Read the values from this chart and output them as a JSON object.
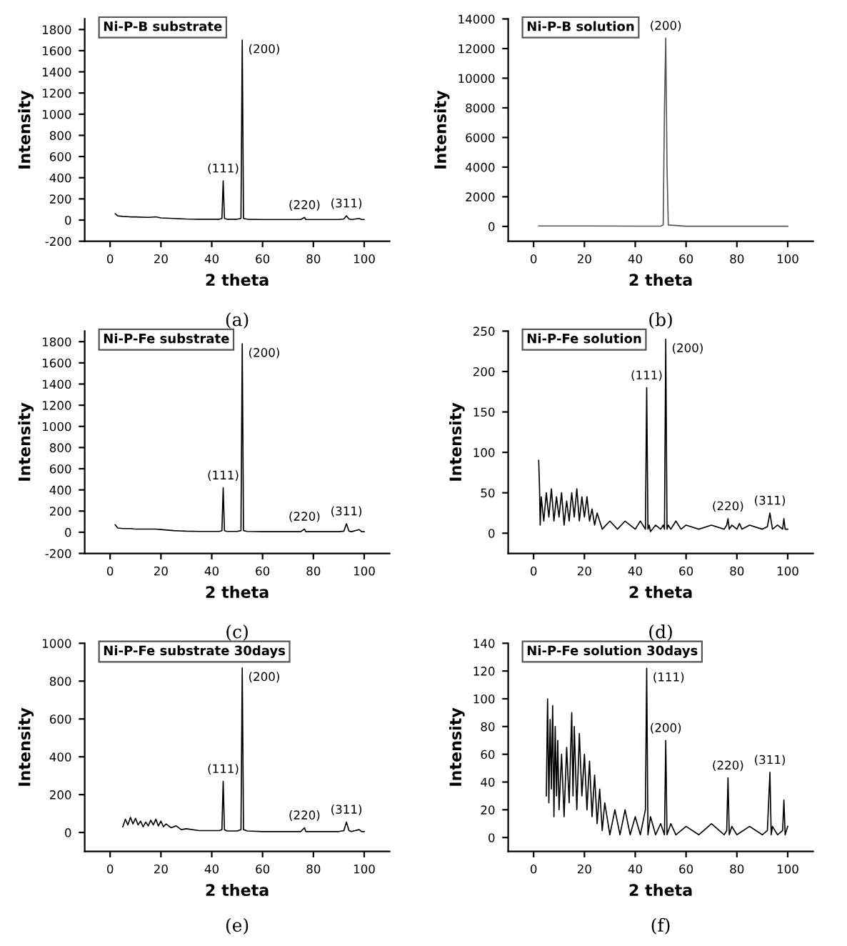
{
  "chart_data": [
    {
      "type": "line",
      "title": "Ni-P-B substrate",
      "xlabel": "2 theta",
      "ylabel": "Intensity",
      "color": "#000000",
      "x": [
        2,
        3,
        5,
        8,
        10,
        15,
        18,
        20,
        25,
        30,
        35,
        40,
        43,
        44,
        44.5,
        45,
        46,
        50,
        51.5,
        52,
        52.5,
        54,
        60,
        70,
        75,
        76.5,
        77,
        78,
        85,
        90,
        92,
        93,
        94,
        95,
        98,
        99,
        100
      ],
      "values": [
        60,
        40,
        35,
        30,
        30,
        25,
        30,
        20,
        15,
        10,
        8,
        8,
        8,
        15,
        370,
        15,
        8,
        8,
        15,
        1700,
        15,
        8,
        5,
        5,
        5,
        25,
        5,
        5,
        5,
        5,
        10,
        40,
        10,
        5,
        15,
        5,
        5
      ],
      "xlim": [
        -10,
        110
      ],
      "xticks": [
        0,
        20,
        40,
        60,
        80,
        100
      ],
      "ylim": [
        -200,
        1900
      ],
      "yticks": [
        -200,
        0,
        200,
        400,
        600,
        800,
        1000,
        1200,
        1400,
        1600,
        1800
      ],
      "annotations": [
        {
          "text": "(111)",
          "x": 44.5,
          "y": 370
        },
        {
          "text": "(200)",
          "x": 52,
          "y": 1700
        },
        {
          "text": "(220)",
          "x": 76.5,
          "y": 25
        },
        {
          "text": "(311)",
          "x": 93,
          "y": 40
        },
        "(a)"
      ]
    },
    {
      "type": "line",
      "title": "Ni-P-B solution",
      "xlabel": "2 theta",
      "ylabel": "Intensity",
      "color": "#555555",
      "x": [
        2,
        20,
        40,
        50,
        51,
        51.5,
        52,
        52.5,
        53,
        60,
        80,
        100
      ],
      "values": [
        30,
        30,
        20,
        20,
        100,
        8000,
        12700,
        4000,
        100,
        10,
        10,
        10
      ],
      "xlim": [
        -10,
        110
      ],
      "xticks": [
        0,
        20,
        40,
        60,
        80,
        100
      ],
      "ylim": [
        -1000,
        14000
      ],
      "yticks": [
        0,
        2000,
        4000,
        6000,
        8000,
        10000,
        12000,
        14000
      ],
      "annotations": [
        {
          "text": "(200)",
          "x": 52,
          "y": 12700
        },
        "(b)"
      ]
    },
    {
      "type": "line",
      "title": "Ni-P-Fe substrate",
      "xlabel": "2 theta",
      "ylabel": "Intensity",
      "color": "#000000",
      "x": [
        2,
        3,
        5,
        8,
        10,
        15,
        18,
        20,
        25,
        30,
        35,
        40,
        43,
        44,
        44.5,
        45,
        46,
        50,
        51.5,
        52,
        52.5,
        54,
        60,
        70,
        75,
        76.5,
        77,
        78,
        85,
        90,
        92,
        93,
        94,
        95,
        98,
        99,
        100
      ],
      "values": [
        70,
        40,
        35,
        35,
        30,
        30,
        30,
        25,
        15,
        10,
        8,
        8,
        8,
        15,
        420,
        15,
        8,
        8,
        15,
        1780,
        15,
        8,
        5,
        5,
        5,
        30,
        5,
        5,
        5,
        5,
        10,
        80,
        10,
        5,
        25,
        5,
        5
      ],
      "xlim": [
        -10,
        110
      ],
      "xticks": [
        0,
        20,
        40,
        60,
        80,
        100
      ],
      "ylim": [
        -200,
        1900
      ],
      "yticks": [
        -200,
        0,
        200,
        400,
        600,
        800,
        1000,
        1200,
        1400,
        1600,
        1800
      ],
      "annotations": [
        {
          "text": "(111)",
          "x": 44.5,
          "y": 420
        },
        {
          "text": "(200)",
          "x": 52,
          "y": 1780
        },
        {
          "text": "(220)",
          "x": 76.5,
          "y": 30
        },
        {
          "text": "(311)",
          "x": 93,
          "y": 80
        },
        "(c)"
      ]
    },
    {
      "type": "line",
      "title": "Ni-P-Fe solution",
      "xlabel": "2 theta",
      "ylabel": "Intensity",
      "color": "#000000",
      "x": [
        2,
        2.3,
        2.6,
        3,
        4,
        5,
        6,
        7,
        8,
        9,
        10,
        11,
        12,
        13,
        14,
        15,
        16,
        17,
        18,
        19,
        20,
        21,
        22,
        23,
        24,
        25,
        27,
        30,
        33,
        36,
        40,
        42,
        44,
        44.5,
        45,
        45.5,
        46,
        48,
        50,
        51,
        51.5,
        52,
        52.5,
        53,
        54,
        56,
        58,
        60,
        65,
        70,
        75,
        76,
        76.5,
        77,
        78,
        80,
        81,
        82,
        85,
        90,
        92,
        93,
        93.5,
        94,
        96,
        98,
        98.5,
        99,
        100
      ],
      "values": [
        90,
        60,
        10,
        45,
        15,
        50,
        20,
        55,
        15,
        45,
        20,
        50,
        10,
        40,
        15,
        50,
        20,
        55,
        15,
        45,
        20,
        45,
        15,
        30,
        10,
        25,
        5,
        15,
        5,
        15,
        5,
        15,
        5,
        180,
        5,
        10,
        2,
        10,
        5,
        10,
        5,
        240,
        5,
        10,
        5,
        15,
        5,
        10,
        5,
        10,
        5,
        10,
        18,
        5,
        10,
        5,
        12,
        5,
        10,
        5,
        8,
        25,
        15,
        5,
        10,
        5,
        18,
        5,
        5
      ],
      "xlim": [
        -10,
        110
      ],
      "xticks": [
        0,
        20,
        40,
        60,
        80,
        100
      ],
      "ylim": [
        -25,
        250
      ],
      "yticks": [
        0,
        50,
        100,
        150,
        200,
        250
      ],
      "annotations": [
        {
          "text": "(111)",
          "x": 44.5,
          "y": 180
        },
        {
          "text": "(200)",
          "x": 52,
          "y": 240
        },
        {
          "text": "(220)",
          "x": 76.5,
          "y": 18
        },
        {
          "text": "(311)",
          "x": 93,
          "y": 25
        },
        "(d)"
      ]
    },
    {
      "type": "line",
      "title": "Ni-P-Fe substrate 30days",
      "xlabel": "2 theta",
      "ylabel": "Intensity",
      "color": "#000000",
      "x": [
        5,
        6,
        7,
        8,
        9,
        10,
        11,
        12,
        13,
        14,
        15,
        16,
        17,
        18,
        19,
        20,
        21,
        22,
        24,
        26,
        28,
        30,
        35,
        40,
        43,
        44,
        44.5,
        45,
        46,
        50,
        51.5,
        52,
        52.5,
        54,
        60,
        70,
        75,
        76.5,
        77,
        78,
        85,
        90,
        92,
        93,
        94,
        95,
        98,
        99,
        100
      ],
      "values": [
        30,
        70,
        40,
        80,
        45,
        75,
        40,
        60,
        30,
        55,
        35,
        65,
        40,
        70,
        35,
        60,
        30,
        45,
        25,
        35,
        15,
        20,
        10,
        10,
        10,
        15,
        270,
        15,
        8,
        8,
        15,
        870,
        15,
        8,
        5,
        5,
        5,
        25,
        5,
        5,
        5,
        5,
        10,
        55,
        10,
        5,
        15,
        5,
        5
      ],
      "xlim": [
        -10,
        110
      ],
      "xticks": [
        0,
        20,
        40,
        60,
        80,
        100
      ],
      "ylim": [
        -100,
        1000
      ],
      "yticks": [
        0,
        200,
        400,
        600,
        800,
        1000
      ],
      "annotations": [
        {
          "text": "(111)",
          "x": 44.5,
          "y": 270
        },
        {
          "text": "(200)",
          "x": 52,
          "y": 870
        },
        {
          "text": "(220)",
          "x": 76.5,
          "y": 25
        },
        {
          "text": "(311)",
          "x": 93,
          "y": 55
        },
        "(e)"
      ]
    },
    {
      "type": "line",
      "title": "Ni-P-Fe solution 30days",
      "xlabel": "2 theta",
      "ylabel": "Intensity",
      "color": "#000000",
      "x": [
        5,
        5.5,
        6,
        6.5,
        7,
        7.5,
        8,
        8.5,
        9,
        9.5,
        10,
        11,
        12,
        13,
        14,
        15,
        15.5,
        16,
        17,
        18,
        19,
        20,
        21,
        22,
        23,
        24,
        25,
        26,
        27,
        28,
        30,
        32,
        34,
        36,
        38,
        40,
        42,
        44,
        44.5,
        45,
        46,
        48,
        50,
        51.5,
        52,
        52.5,
        54,
        56,
        60,
        65,
        70,
        75,
        76,
        76.5,
        77,
        78,
        80,
        85,
        90,
        92,
        93,
        93.5,
        94,
        96,
        98,
        98.5,
        99,
        100
      ],
      "values": [
        30,
        100,
        25,
        85,
        35,
        95,
        15,
        80,
        30,
        70,
        20,
        60,
        15,
        65,
        25,
        90,
        30,
        80,
        20,
        75,
        30,
        60,
        20,
        55,
        15,
        45,
        10,
        35,
        5,
        25,
        2,
        20,
        2,
        20,
        2,
        15,
        2,
        20,
        122,
        2,
        15,
        2,
        10,
        2,
        70,
        2,
        10,
        2,
        8,
        2,
        10,
        2,
        5,
        43,
        2,
        8,
        2,
        8,
        2,
        5,
        47,
        2,
        8,
        2,
        5,
        27,
        2,
        8
      ],
      "xlim": [
        -10,
        110
      ],
      "xticks": [
        0,
        20,
        40,
        60,
        80,
        100
      ],
      "ylim": [
        -10,
        140
      ],
      "yticks": [
        0,
        20,
        40,
        60,
        80,
        100,
        120,
        140
      ],
      "annotations": [
        {
          "text": "(111)",
          "x": 44.5,
          "y": 122
        },
        {
          "text": "(200)",
          "x": 52,
          "y": 70
        },
        {
          "text": "(220)",
          "x": 76.5,
          "y": 43
        },
        {
          "text": "(311)",
          "x": 93,
          "y": 47
        },
        "(f)"
      ]
    }
  ]
}
